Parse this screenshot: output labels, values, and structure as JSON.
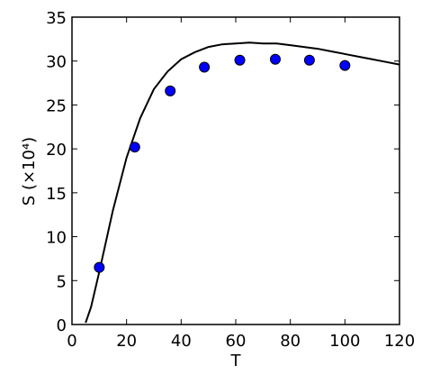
{
  "chart_data": {
    "type": "combo",
    "xlabel": "T",
    "ylabel": "S (×10⁴)",
    "xlim": [
      0,
      120
    ],
    "xticks": [
      0,
      20,
      40,
      60,
      80,
      100,
      120
    ],
    "ylim": [
      0,
      35
    ],
    "yticks": [
      0,
      5,
      10,
      15,
      20,
      25,
      30,
      35
    ],
    "series": [
      {
        "type": "line",
        "color": "#000000",
        "x": [
          5,
          7,
          10,
          15,
          20,
          25,
          30,
          35,
          40,
          45,
          50,
          55,
          60,
          65,
          70,
          75,
          80,
          85,
          90,
          95,
          100,
          105,
          110,
          115,
          120
        ],
        "values": [
          0.2,
          2,
          6,
          13,
          19,
          23.5,
          26.8,
          28.8,
          30.2,
          31,
          31.6,
          31.9,
          32,
          32.1,
          32,
          32,
          31.8,
          31.6,
          31.4,
          31.1,
          30.8,
          30.5,
          30.2,
          29.9,
          29.6
        ]
      },
      {
        "type": "scatter",
        "color": "#0000ff",
        "x": [
          10,
          23,
          36,
          48.5,
          61.5,
          74.5,
          87,
          100
        ],
        "values": [
          6.5,
          20.2,
          26.6,
          29.3,
          30.1,
          30.2,
          30.1,
          29.5
        ]
      }
    ]
  }
}
